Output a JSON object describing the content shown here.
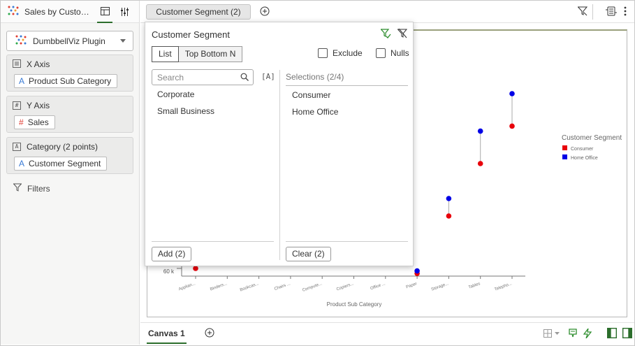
{
  "app": {
    "workbook_title": "Sales by Custome..."
  },
  "left_panel": {
    "plugin_label": "DumbbellViz Plugin",
    "wells": [
      {
        "label": "X Axis",
        "pill": "Product Sub Category",
        "icon": "text-columns-icon",
        "pill_icon": "A"
      },
      {
        "label": "Y Axis",
        "pill": "Sales",
        "icon": "hash-box-icon",
        "pill_icon": "#"
      },
      {
        "label": "Category (2 points)",
        "pill": "Customer Segment",
        "icon": "a-box-icon",
        "pill_icon": "A"
      }
    ],
    "filters_label": "Filters"
  },
  "topbar": {
    "filter_pill": "Customer Segment (2)"
  },
  "popup": {
    "title": "Customer Segment",
    "tab_list": "List",
    "tab_topbottom": "Top Bottom N",
    "exclude_label": "Exclude",
    "nulls_label": "Nulls",
    "search_placeholder": "Search",
    "case_label": "[A]",
    "available": [
      "Corporate",
      "Small Business"
    ],
    "selections_header": "Selections (2/4)",
    "selections": [
      "Consumer",
      "Home Office"
    ],
    "add_button": "Add (2)",
    "clear_button": "Clear (2)"
  },
  "chart_data": {
    "type": "scatter",
    "xlabel": "Product Sub Category",
    "ylabel": "",
    "y_tick_labels": [
      "60 k"
    ],
    "categories": [
      "Applian...",
      "Binders...",
      "Bookcas...",
      "Chairs ...",
      "Compute...",
      "Copiers...",
      "Office ...",
      "Paper",
      "Storage...",
      "Tables",
      "Telepho..."
    ],
    "legend_title": "Customer Segment",
    "legend_position": "right",
    "series": [
      {
        "name": "Consumer",
        "color": "#e8000b",
        "points": [
          {
            "x": "Applian...",
            "y": 60
          },
          {
            "x": "Paper",
            "y": 58
          },
          {
            "x": "Storage...",
            "y": 81
          },
          {
            "x": "Tables",
            "y": 102
          },
          {
            "x": "Telepho...",
            "y": 117
          }
        ]
      },
      {
        "name": "Home Office",
        "color": "#0000e6",
        "points": [
          {
            "x": "Paper",
            "y": 59
          },
          {
            "x": "Storage...",
            "y": 88
          },
          {
            "x": "Tables",
            "y": 115
          },
          {
            "x": "Telepho...",
            "y": 130
          }
        ]
      }
    ]
  },
  "bottombar": {
    "canvas_tab": "Canvas 1"
  }
}
